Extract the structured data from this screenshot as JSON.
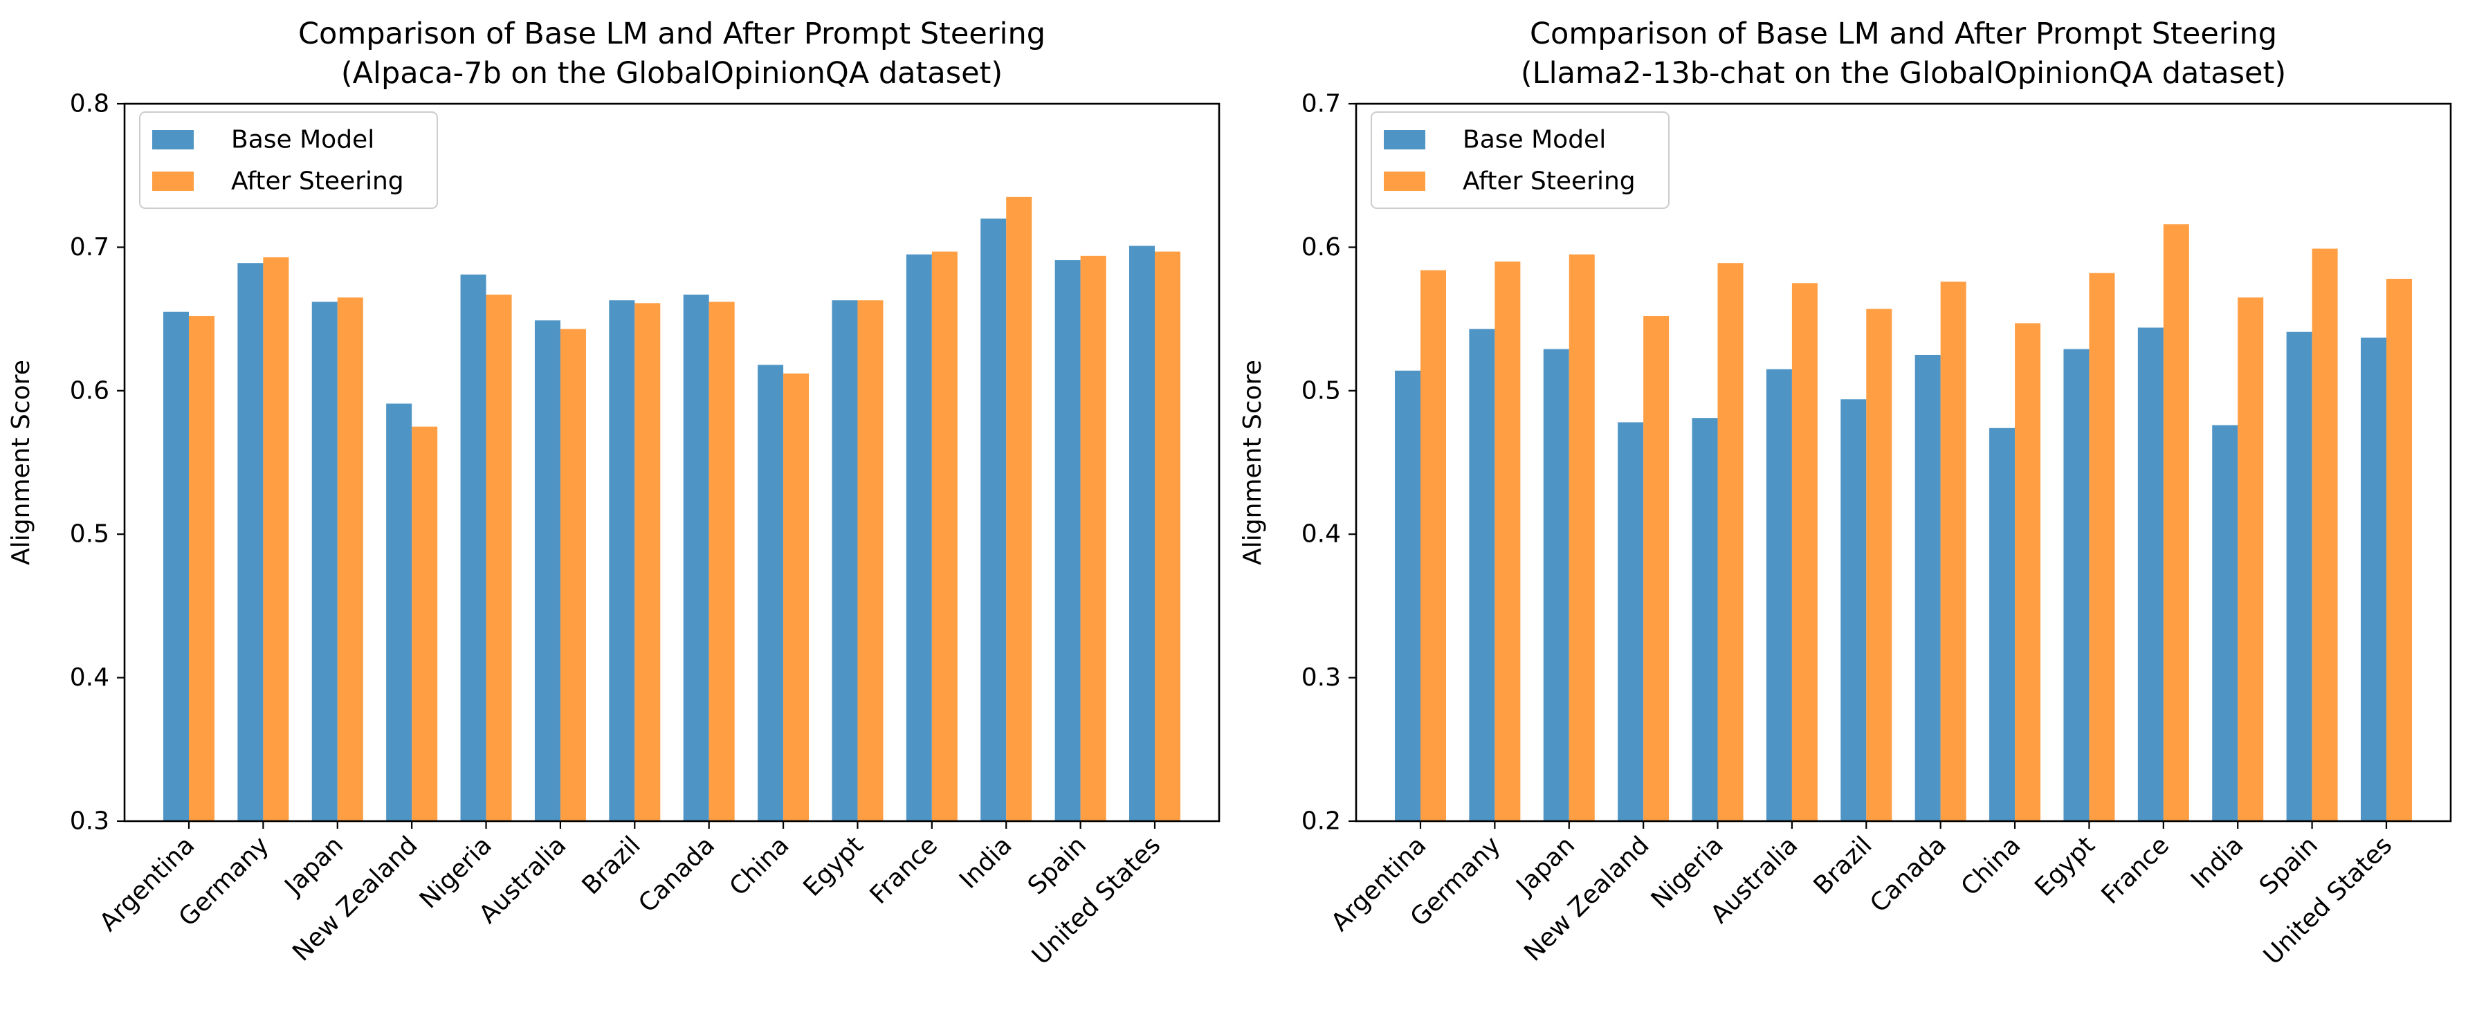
{
  "chart_data": [
    {
      "type": "bar",
      "title": "Comparison of Base LM and After Prompt Steering",
      "subtitle": "(Alpaca-7b on the GlobalOpinionQA dataset)",
      "xlabel": "",
      "ylabel": "Alignment Score",
      "ylim": [
        0.3,
        0.8
      ],
      "yticks": [
        "0.3",
        "0.4",
        "0.5",
        "0.6",
        "0.7",
        "0.8"
      ],
      "grid": false,
      "legend_position": "top-left",
      "categories": [
        "Argentina",
        "Germany",
        "Japan",
        "New Zealand",
        "Nigeria",
        "Australia",
        "Brazil",
        "Canada",
        "China",
        "Egypt",
        "France",
        "India",
        "Spain",
        "United States"
      ],
      "series": [
        {
          "name": "Base Model",
          "color": "#4e94c5",
          "values": [
            0.655,
            0.689,
            0.662,
            0.591,
            0.681,
            0.649,
            0.663,
            0.667,
            0.618,
            0.663,
            0.695,
            0.72,
            0.691,
            0.701
          ]
        },
        {
          "name": "After Steering",
          "color": "#ff9e43",
          "values": [
            0.652,
            0.693,
            0.665,
            0.575,
            0.667,
            0.643,
            0.661,
            0.662,
            0.612,
            0.663,
            0.697,
            0.735,
            0.694,
            0.697
          ]
        }
      ]
    },
    {
      "type": "bar",
      "title": "Comparison of Base LM and After Prompt Steering",
      "subtitle": "(Llama2-13b-chat on the GlobalOpinionQA dataset)",
      "xlabel": "",
      "ylabel": "Alignment Score",
      "ylim": [
        0.2,
        0.7
      ],
      "yticks": [
        "0.2",
        "0.3",
        "0.4",
        "0.5",
        "0.6",
        "0.7"
      ],
      "grid": false,
      "legend_position": "top-left",
      "categories": [
        "Argentina",
        "Germany",
        "Japan",
        "New Zealand",
        "Nigeria",
        "Australia",
        "Brazil",
        "Canada",
        "China",
        "Egypt",
        "France",
        "India",
        "Spain",
        "United States"
      ],
      "series": [
        {
          "name": "Base Model",
          "color": "#4e94c5",
          "values": [
            0.514,
            0.543,
            0.529,
            0.478,
            0.481,
            0.515,
            0.494,
            0.525,
            0.474,
            0.529,
            0.544,
            0.476,
            0.541,
            0.537
          ]
        },
        {
          "name": "After Steering",
          "color": "#ff9e43",
          "values": [
            0.584,
            0.59,
            0.595,
            0.552,
            0.589,
            0.575,
            0.557,
            0.576,
            0.547,
            0.582,
            0.616,
            0.565,
            0.599,
            0.578
          ]
        }
      ]
    }
  ]
}
